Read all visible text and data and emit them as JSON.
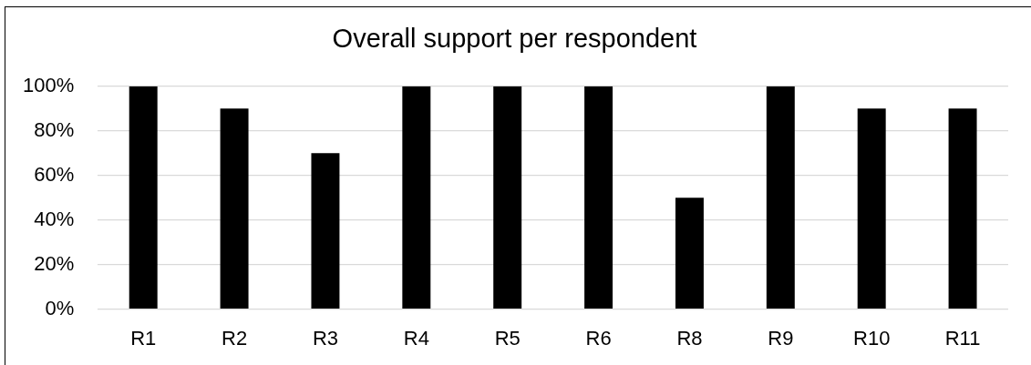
{
  "chart_data": {
    "type": "bar",
    "title": "Overall support per respondent",
    "categories": [
      "R1",
      "R2",
      "R3",
      "R4",
      "R5",
      "R6",
      "R8",
      "R9",
      "R10",
      "R11"
    ],
    "values": [
      100,
      90,
      70,
      100,
      100,
      100,
      50,
      100,
      90,
      90
    ],
    "color": "#000000",
    "ylim": [
      0,
      100
    ],
    "yticks": [
      {
        "value": 0,
        "label": "0%"
      },
      {
        "value": 20,
        "label": "20%"
      },
      {
        "value": 40,
        "label": "40%"
      },
      {
        "value": 60,
        "label": "60%"
      },
      {
        "value": 80,
        "label": "80%"
      },
      {
        "value": 100,
        "label": "100%"
      }
    ],
    "grid": "y"
  }
}
